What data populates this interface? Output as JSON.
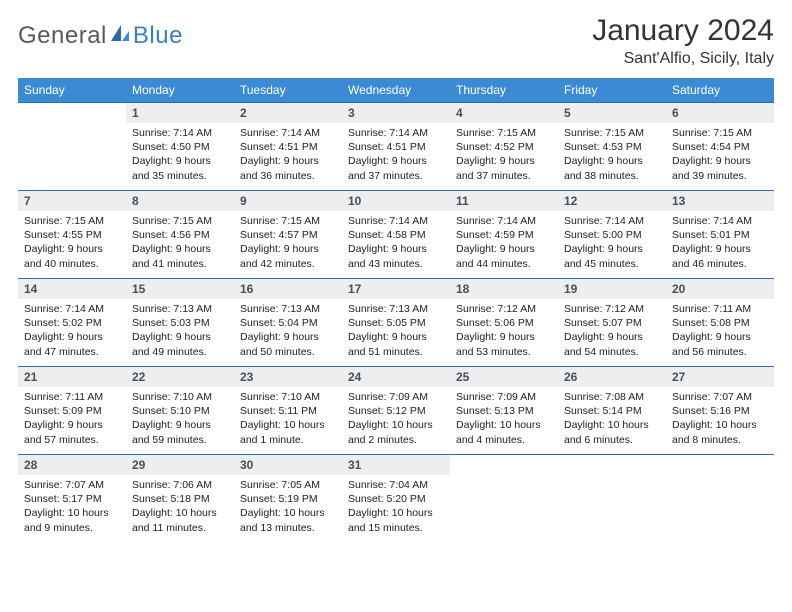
{
  "logo": {
    "text1": "General",
    "text2": "Blue"
  },
  "title": "January 2024",
  "location": "Sant'Alfio, Sicily, Italy",
  "colors": {
    "header_bg": "#3b8bd4",
    "header_text": "#ffffff",
    "border": "#2f6aa8",
    "daynum_bg": "#eceef0",
    "daynum_text": "#4a4f55",
    "body_text": "#222222",
    "logo_gray": "#555a60",
    "logo_blue": "#3b7fc4",
    "page_bg": "#ffffff"
  },
  "typography": {
    "title_fontsize": 30,
    "location_fontsize": 16,
    "header_fontsize": 12,
    "daynum_fontsize": 12,
    "cell_fontsize": 10.5
  },
  "dayHeaders": [
    "Sunday",
    "Monday",
    "Tuesday",
    "Wednesday",
    "Thursday",
    "Friday",
    "Saturday"
  ],
  "weeks": [
    [
      null,
      {
        "n": "1",
        "sunrise": "7:14 AM",
        "sunset": "4:50 PM",
        "daylight": "9 hours and 35 minutes."
      },
      {
        "n": "2",
        "sunrise": "7:14 AM",
        "sunset": "4:51 PM",
        "daylight": "9 hours and 36 minutes."
      },
      {
        "n": "3",
        "sunrise": "7:14 AM",
        "sunset": "4:51 PM",
        "daylight": "9 hours and 37 minutes."
      },
      {
        "n": "4",
        "sunrise": "7:15 AM",
        "sunset": "4:52 PM",
        "daylight": "9 hours and 37 minutes."
      },
      {
        "n": "5",
        "sunrise": "7:15 AM",
        "sunset": "4:53 PM",
        "daylight": "9 hours and 38 minutes."
      },
      {
        "n": "6",
        "sunrise": "7:15 AM",
        "sunset": "4:54 PM",
        "daylight": "9 hours and 39 minutes."
      }
    ],
    [
      {
        "n": "7",
        "sunrise": "7:15 AM",
        "sunset": "4:55 PM",
        "daylight": "9 hours and 40 minutes."
      },
      {
        "n": "8",
        "sunrise": "7:15 AM",
        "sunset": "4:56 PM",
        "daylight": "9 hours and 41 minutes."
      },
      {
        "n": "9",
        "sunrise": "7:15 AM",
        "sunset": "4:57 PM",
        "daylight": "9 hours and 42 minutes."
      },
      {
        "n": "10",
        "sunrise": "7:14 AM",
        "sunset": "4:58 PM",
        "daylight": "9 hours and 43 minutes."
      },
      {
        "n": "11",
        "sunrise": "7:14 AM",
        "sunset": "4:59 PM",
        "daylight": "9 hours and 44 minutes."
      },
      {
        "n": "12",
        "sunrise": "7:14 AM",
        "sunset": "5:00 PM",
        "daylight": "9 hours and 45 minutes."
      },
      {
        "n": "13",
        "sunrise": "7:14 AM",
        "sunset": "5:01 PM",
        "daylight": "9 hours and 46 minutes."
      }
    ],
    [
      {
        "n": "14",
        "sunrise": "7:14 AM",
        "sunset": "5:02 PM",
        "daylight": "9 hours and 47 minutes."
      },
      {
        "n": "15",
        "sunrise": "7:13 AM",
        "sunset": "5:03 PM",
        "daylight": "9 hours and 49 minutes."
      },
      {
        "n": "16",
        "sunrise": "7:13 AM",
        "sunset": "5:04 PM",
        "daylight": "9 hours and 50 minutes."
      },
      {
        "n": "17",
        "sunrise": "7:13 AM",
        "sunset": "5:05 PM",
        "daylight": "9 hours and 51 minutes."
      },
      {
        "n": "18",
        "sunrise": "7:12 AM",
        "sunset": "5:06 PM",
        "daylight": "9 hours and 53 minutes."
      },
      {
        "n": "19",
        "sunrise": "7:12 AM",
        "sunset": "5:07 PM",
        "daylight": "9 hours and 54 minutes."
      },
      {
        "n": "20",
        "sunrise": "7:11 AM",
        "sunset": "5:08 PM",
        "daylight": "9 hours and 56 minutes."
      }
    ],
    [
      {
        "n": "21",
        "sunrise": "7:11 AM",
        "sunset": "5:09 PM",
        "daylight": "9 hours and 57 minutes."
      },
      {
        "n": "22",
        "sunrise": "7:10 AM",
        "sunset": "5:10 PM",
        "daylight": "9 hours and 59 minutes."
      },
      {
        "n": "23",
        "sunrise": "7:10 AM",
        "sunset": "5:11 PM",
        "daylight": "10 hours and 1 minute."
      },
      {
        "n": "24",
        "sunrise": "7:09 AM",
        "sunset": "5:12 PM",
        "daylight": "10 hours and 2 minutes."
      },
      {
        "n": "25",
        "sunrise": "7:09 AM",
        "sunset": "5:13 PM",
        "daylight": "10 hours and 4 minutes."
      },
      {
        "n": "26",
        "sunrise": "7:08 AM",
        "sunset": "5:14 PM",
        "daylight": "10 hours and 6 minutes."
      },
      {
        "n": "27",
        "sunrise": "7:07 AM",
        "sunset": "5:16 PM",
        "daylight": "10 hours and 8 minutes."
      }
    ],
    [
      {
        "n": "28",
        "sunrise": "7:07 AM",
        "sunset": "5:17 PM",
        "daylight": "10 hours and 9 minutes."
      },
      {
        "n": "29",
        "sunrise": "7:06 AM",
        "sunset": "5:18 PM",
        "daylight": "10 hours and 11 minutes."
      },
      {
        "n": "30",
        "sunrise": "7:05 AM",
        "sunset": "5:19 PM",
        "daylight": "10 hours and 13 minutes."
      },
      {
        "n": "31",
        "sunrise": "7:04 AM",
        "sunset": "5:20 PM",
        "daylight": "10 hours and 15 minutes."
      },
      null,
      null,
      null
    ]
  ],
  "labels": {
    "sunrise": "Sunrise:",
    "sunset": "Sunset:",
    "daylight": "Daylight:"
  }
}
